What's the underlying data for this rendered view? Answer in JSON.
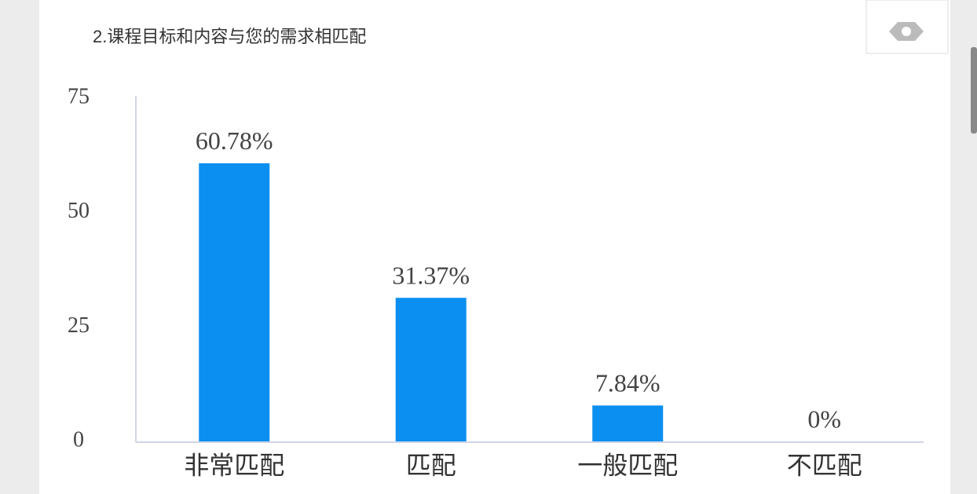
{
  "chart_data": {
    "type": "bar",
    "title": "2.课程目标和内容与您的需求相匹配",
    "categories": [
      "非常匹配",
      "匹配",
      "一般匹配",
      "不匹配"
    ],
    "values": [
      60.78,
      31.37,
      7.84,
      0
    ],
    "value_labels": [
      "60.78%",
      "31.37%",
      "7.84%",
      "0%"
    ],
    "color": "#0b8ff0",
    "ylim": [
      0,
      75
    ],
    "yticks": [
      0,
      25,
      50,
      75
    ],
    "grid": false
  }
}
